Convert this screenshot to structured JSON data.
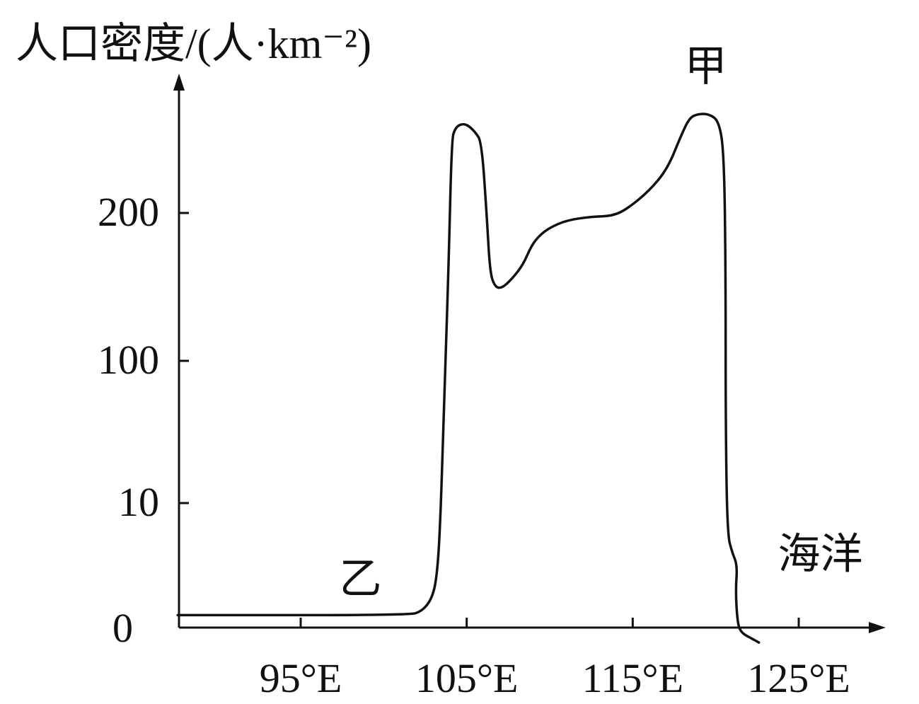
{
  "chart_data": {
    "type": "line",
    "ylabel": "人口密度/(人·km⁻²)",
    "xlabel": "",
    "x_ticks": [
      {
        "value": 95,
        "label": "95°E"
      },
      {
        "value": 105,
        "label": "105°E"
      },
      {
        "value": 115,
        "label": "115°E"
      },
      {
        "value": 125,
        "label": "125°E"
      }
    ],
    "y_ticks": [
      {
        "value": 0,
        "label": "0"
      },
      {
        "value": 10,
        "label": "10"
      },
      {
        "value": 100,
        "label": "100"
      },
      {
        "value": 200,
        "label": "200"
      }
    ],
    "x_range": [
      87.6,
      130
    ],
    "y_scale": "piecewise (0–10 compressed, 10–200 linear)",
    "series": [
      {
        "points": [
          [
            87.6,
            1
          ],
          [
            101.5,
            1
          ],
          [
            102.3,
            1.3
          ],
          [
            102.9,
            2.3
          ],
          [
            103.2,
            4
          ],
          [
            103.4,
            8
          ],
          [
            103.6,
            60
          ],
          [
            103.9,
            160
          ],
          [
            104.1,
            250
          ],
          [
            104.3,
            257
          ],
          [
            104.6,
            260
          ],
          [
            105.0,
            260
          ],
          [
            105.5,
            255
          ],
          [
            105.9,
            248
          ],
          [
            106.2,
            200
          ],
          [
            106.4,
            160
          ],
          [
            106.7,
            150
          ],
          [
            107.1,
            149
          ],
          [
            107.7,
            155
          ],
          [
            108.4,
            165
          ],
          [
            108.9,
            178
          ],
          [
            109.4,
            185
          ],
          [
            110.0,
            190
          ],
          [
            111.0,
            195
          ],
          [
            112.5,
            197.5
          ],
          [
            113.8,
            198
          ],
          [
            114.7,
            203
          ],
          [
            116.0,
            215
          ],
          [
            117.1,
            230
          ],
          [
            117.9,
            252
          ],
          [
            118.4,
            264
          ],
          [
            118.9,
            267
          ],
          [
            119.6,
            267
          ],
          [
            120.2,
            262
          ],
          [
            120.5,
            240
          ],
          [
            120.6,
            160
          ],
          [
            120.6,
            60
          ],
          [
            120.7,
            7.5
          ],
          [
            121.0,
            6
          ],
          [
            121.3,
            5
          ],
          [
            121.2,
            3
          ],
          [
            121.3,
            0.55
          ],
          [
            121.5,
            -0.4
          ],
          [
            122.2,
            -0.9
          ],
          [
            122.6,
            -1.2
          ]
        ]
      }
    ],
    "annotations": [
      {
        "text": "甲",
        "x": 119.4,
        "y": 300
      },
      {
        "text": "乙",
        "x": 98.6,
        "y": 4
      },
      {
        "text": "海洋",
        "x": 126.3,
        "y": 6
      }
    ],
    "grid": false,
    "legend": "none"
  }
}
